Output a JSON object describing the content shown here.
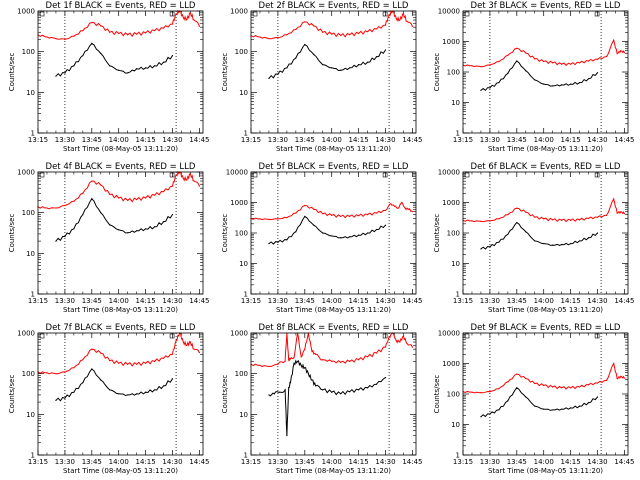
{
  "figure": {
    "x_tick_labels": [
      "13:15",
      "13:30",
      "13:45",
      "14:00",
      "14:15",
      "14:30",
      "14:45"
    ],
    "x_tick_minutes": [
      0,
      15,
      30,
      45,
      60,
      75,
      90
    ],
    "x_start_label": "Start Time (08-May-05 13:11:20)",
    "y_label": "Counts/sec",
    "series_colors": {
      "events": "#000000",
      "lld": "#ff0000"
    },
    "dotted_lines_minutes": [
      15,
      77
    ]
  },
  "chart_data": [
    {
      "type": "line",
      "title": "Det 1f BLACK = Events, RED = LLD",
      "ylim": [
        1,
        1000
      ],
      "y_tick_labels": [
        "1",
        "10",
        "100",
        "1000"
      ],
      "y_ticks": [
        1,
        10,
        100,
        1000
      ],
      "series": [
        {
          "key": "lld",
          "x": [
            0,
            5,
            10,
            15,
            20,
            25,
            30,
            35,
            40,
            45,
            50,
            55,
            60,
            65,
            70,
            75,
            77,
            79,
            81,
            83,
            85,
            87,
            90
          ],
          "values": [
            260,
            230,
            210,
            200,
            240,
            330,
            520,
            430,
            300,
            280,
            260,
            270,
            290,
            330,
            380,
            480,
            850,
            1000,
            700,
            620,
            900,
            600,
            420
          ]
        },
        {
          "key": "events",
          "x": [
            10,
            15,
            20,
            25,
            30,
            35,
            40,
            45,
            50,
            55,
            60,
            65,
            70,
            75
          ],
          "values": [
            25,
            30,
            45,
            80,
            160,
            90,
            45,
            35,
            30,
            38,
            40,
            45,
            55,
            80
          ]
        }
      ]
    },
    {
      "type": "line",
      "title": "Det 2f BLACK = Events, RED = LLD",
      "ylim": [
        1,
        1000
      ],
      "y_tick_labels": [
        "1",
        "10",
        "100",
        "1000"
      ],
      "y_ticks": [
        1,
        10,
        100,
        1000
      ],
      "series": [
        {
          "key": "lld",
          "x": [
            0,
            5,
            10,
            15,
            20,
            25,
            30,
            35,
            40,
            45,
            50,
            55,
            60,
            65,
            70,
            75,
            77,
            79,
            81,
            83,
            85,
            87,
            90
          ],
          "values": [
            250,
            230,
            210,
            220,
            260,
            350,
            540,
            430,
            300,
            270,
            250,
            260,
            280,
            310,
            360,
            450,
            800,
            1000,
            650,
            600,
            850,
            550,
            420
          ]
        },
        {
          "key": "events",
          "x": [
            10,
            15,
            20,
            25,
            30,
            35,
            40,
            45,
            50,
            55,
            60,
            65,
            70,
            75
          ],
          "values": [
            22,
            28,
            40,
            70,
            150,
            85,
            48,
            40,
            35,
            40,
            48,
            55,
            75,
            110
          ]
        }
      ]
    },
    {
      "type": "line",
      "title": "Det 3f BLACK = Events, RED = LLD",
      "ylim": [
        1,
        10000
      ],
      "y_tick_labels": [
        "1",
        "10",
        "100",
        "1000",
        "10000"
      ],
      "y_ticks": [
        1,
        10,
        100,
        1000,
        10000
      ],
      "series": [
        {
          "key": "lld",
          "x": [
            0,
            5,
            10,
            15,
            20,
            25,
            30,
            35,
            40,
            45,
            50,
            55,
            60,
            65,
            70,
            75,
            80,
            84,
            86,
            88,
            90
          ],
          "values": [
            170,
            160,
            150,
            170,
            220,
            350,
            600,
            420,
            270,
            220,
            200,
            180,
            180,
            200,
            230,
            260,
            320,
            1100,
            400,
            500,
            430
          ]
        },
        {
          "key": "events",
          "x": [
            10,
            15,
            20,
            25,
            30,
            35,
            40,
            45,
            50,
            55,
            60,
            65,
            70,
            75
          ],
          "values": [
            25,
            30,
            45,
            90,
            230,
            110,
            55,
            40,
            35,
            38,
            40,
            45,
            60,
            95
          ]
        }
      ]
    },
    {
      "type": "line",
      "title": "Det 4f BLACK = Events, RED = LLD",
      "ylim": [
        1,
        1000
      ],
      "y_tick_labels": [
        "1",
        "10",
        "100",
        "1000"
      ],
      "y_ticks": [
        1,
        10,
        100,
        1000
      ],
      "series": [
        {
          "key": "lld",
          "x": [
            0,
            5,
            10,
            15,
            20,
            25,
            30,
            35,
            40,
            45,
            50,
            55,
            60,
            65,
            70,
            75,
            77,
            79,
            81,
            83,
            85,
            87,
            90
          ],
          "values": [
            140,
            130,
            130,
            150,
            190,
            300,
            600,
            480,
            280,
            230,
            200,
            210,
            230,
            270,
            330,
            450,
            850,
            1000,
            700,
            650,
            900,
            600,
            450
          ]
        },
        {
          "key": "events",
          "x": [
            10,
            15,
            20,
            25,
            30,
            35,
            40,
            45,
            50,
            55,
            60,
            65,
            70,
            75
          ],
          "values": [
            20,
            26,
            40,
            90,
            220,
            100,
            50,
            38,
            32,
            36,
            40,
            45,
            60,
            90
          ]
        }
      ]
    },
    {
      "type": "line",
      "title": "Det 5f BLACK = Events, RED = LLD",
      "ylim": [
        1,
        10000
      ],
      "y_tick_labels": [
        "1",
        "10",
        "100",
        "1000",
        "10000"
      ],
      "y_ticks": [
        1,
        10,
        100,
        1000,
        10000
      ],
      "series": [
        {
          "key": "lld",
          "x": [
            0,
            5,
            10,
            15,
            20,
            25,
            30,
            35,
            40,
            45,
            50,
            55,
            60,
            65,
            70,
            75,
            78,
            80,
            82,
            84,
            86,
            88,
            90
          ],
          "values": [
            300,
            290,
            280,
            290,
            320,
            450,
            800,
            600,
            430,
            380,
            350,
            350,
            370,
            400,
            450,
            550,
            900,
            750,
            650,
            1000,
            650,
            600,
            500
          ]
        },
        {
          "key": "events",
          "x": [
            10,
            15,
            20,
            25,
            30,
            35,
            40,
            45,
            50,
            55,
            60,
            65,
            70,
            75
          ],
          "values": [
            45,
            50,
            60,
            110,
            350,
            180,
            100,
            80,
            70,
            75,
            85,
            100,
            130,
            180
          ]
        }
      ]
    },
    {
      "type": "line",
      "title": "Det 6f BLACK = Events, RED = LLD",
      "ylim": [
        1,
        10000
      ],
      "y_tick_labels": [
        "1",
        "10",
        "100",
        "1000",
        "10000"
      ],
      "y_ticks": [
        1,
        10,
        100,
        1000,
        10000
      ],
      "series": [
        {
          "key": "lld",
          "x": [
            0,
            5,
            10,
            15,
            20,
            25,
            30,
            35,
            40,
            45,
            50,
            55,
            60,
            65,
            70,
            75,
            80,
            84,
            86,
            88,
            90
          ],
          "values": [
            260,
            250,
            240,
            250,
            290,
            400,
            650,
            480,
            330,
            290,
            270,
            260,
            260,
            270,
            300,
            330,
            380,
            1300,
            450,
            500,
            430
          ]
        },
        {
          "key": "events",
          "x": [
            10,
            15,
            20,
            25,
            30,
            35,
            40,
            45,
            50,
            55,
            60,
            65,
            70,
            75
          ],
          "values": [
            30,
            35,
            50,
            90,
            220,
            110,
            55,
            45,
            40,
            42,
            45,
            55,
            70,
            100
          ]
        }
      ]
    },
    {
      "type": "line",
      "title": "Det 7f BLACK = Events, RED = LLD",
      "ylim": [
        1,
        1000
      ],
      "y_tick_labels": [
        "1",
        "10",
        "100",
        "1000"
      ],
      "y_ticks": [
        1,
        10,
        100,
        1000
      ],
      "series": [
        {
          "key": "lld",
          "x": [
            0,
            5,
            10,
            15,
            20,
            25,
            30,
            35,
            40,
            45,
            50,
            55,
            60,
            65,
            70,
            75,
            77,
            79,
            81,
            83,
            85,
            87,
            90
          ],
          "values": [
            110,
            105,
            100,
            110,
            140,
            220,
            400,
            320,
            210,
            180,
            170,
            170,
            180,
            200,
            240,
            300,
            650,
            1000,
            600,
            500,
            600,
            400,
            330
          ]
        },
        {
          "key": "events",
          "x": [
            10,
            15,
            20,
            25,
            30,
            35,
            40,
            45,
            50,
            55,
            60,
            65,
            70,
            75
          ],
          "values": [
            22,
            25,
            35,
            60,
            130,
            70,
            40,
            32,
            30,
            32,
            35,
            40,
            50,
            75
          ]
        }
      ]
    },
    {
      "type": "line",
      "title": "Det 8f BLACK = Events, RED = LLD",
      "ylim": [
        1,
        1000
      ],
      "y_tick_labels": [
        "1",
        "10",
        "100",
        "1000"
      ],
      "y_ticks": [
        1,
        10,
        100,
        1000
      ],
      "series": [
        {
          "key": "lld",
          "x": [
            0,
            5,
            10,
            15,
            19,
            20,
            21,
            22,
            24,
            26,
            28,
            30,
            32,
            34,
            36,
            40,
            45,
            50,
            55,
            60,
            65,
            70,
            75,
            77,
            79,
            81,
            83,
            85,
            87,
            90
          ],
          "values": [
            170,
            160,
            150,
            170,
            200,
            1000,
            220,
            230,
            250,
            1000,
            260,
            400,
            1000,
            350,
            300,
            220,
            200,
            190,
            200,
            220,
            260,
            320,
            450,
            800,
            1000,
            650,
            600,
            850,
            550,
            450
          ]
        },
        {
          "key": "events",
          "x": [
            10,
            13,
            16,
            19,
            20,
            21,
            22,
            24,
            26,
            28,
            30,
            32,
            34,
            36,
            40,
            45,
            50,
            55,
            60,
            65,
            70,
            75
          ],
          "values": [
            30,
            32,
            35,
            40,
            3,
            45,
            60,
            180,
            200,
            160,
            140,
            100,
            70,
            50,
            40,
            35,
            32,
            36,
            40,
            45,
            55,
            80
          ]
        }
      ]
    },
    {
      "type": "line",
      "title": "Det 9f BLACK = Events, RED = LLD",
      "ylim": [
        1,
        10000
      ],
      "y_tick_labels": [
        "1",
        "10",
        "100",
        "1000",
        "10000"
      ],
      "y_ticks": [
        1,
        10,
        100,
        1000,
        10000
      ],
      "series": [
        {
          "key": "lld",
          "x": [
            0,
            5,
            10,
            15,
            20,
            25,
            30,
            35,
            40,
            45,
            50,
            55,
            60,
            65,
            70,
            75,
            80,
            84,
            86,
            88,
            90
          ],
          "values": [
            120,
            115,
            110,
            120,
            150,
            250,
            450,
            320,
            220,
            190,
            170,
            160,
            160,
            170,
            200,
            230,
            280,
            1000,
            320,
            380,
            330
          ]
        },
        {
          "key": "events",
          "x": [
            10,
            15,
            20,
            25,
            30,
            35,
            40,
            45,
            50,
            55,
            60,
            65,
            70,
            75
          ],
          "values": [
            18,
            22,
            30,
            60,
            160,
            80,
            40,
            32,
            30,
            32,
            35,
            40,
            52,
            80
          ]
        }
      ]
    }
  ]
}
